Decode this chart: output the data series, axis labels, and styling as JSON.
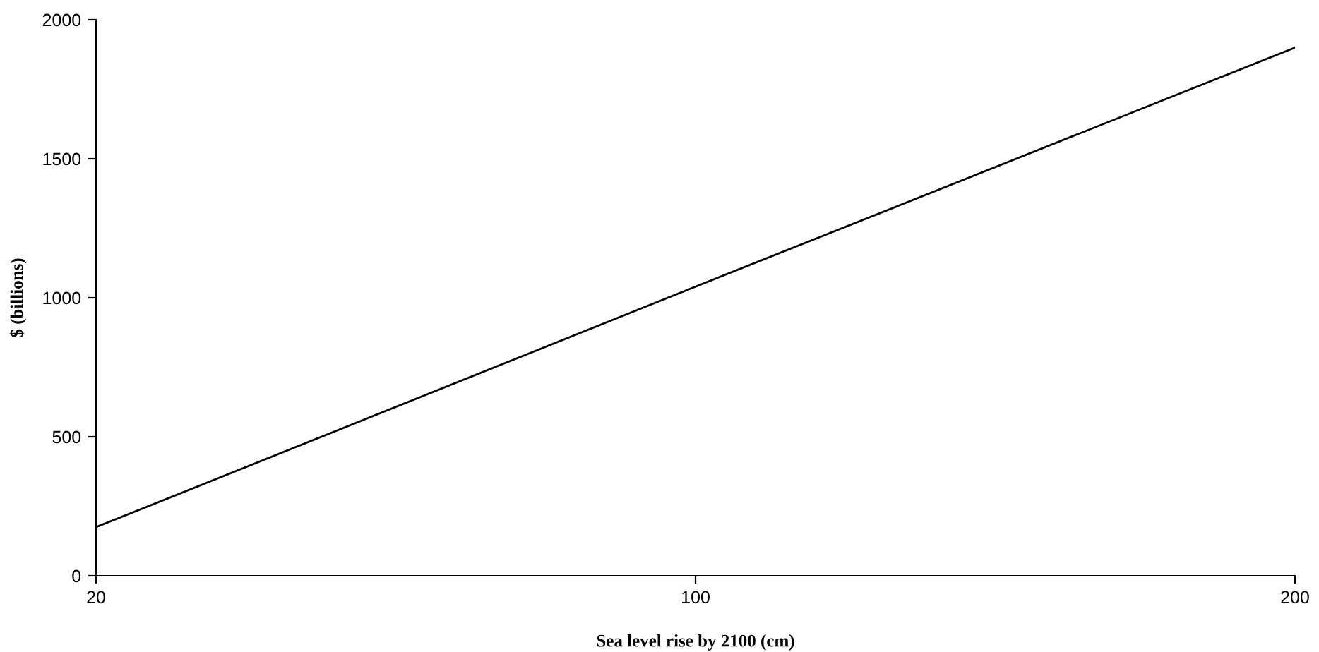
{
  "chart_data": {
    "type": "line",
    "xlabel": "Sea level rise by 2100 (cm)",
    "ylabel": "$ (billions)",
    "categories": [
      "20",
      "100",
      "200"
    ],
    "series": [
      {
        "color": "#000000",
        "values": [
          175,
          1040,
          1900
        ]
      }
    ],
    "ylim": [
      0,
      2000
    ],
    "yticks": [
      0,
      500,
      1000,
      1500,
      2000
    ],
    "grid": false,
    "legend": false,
    "marker": "none",
    "line_style": "solid"
  }
}
